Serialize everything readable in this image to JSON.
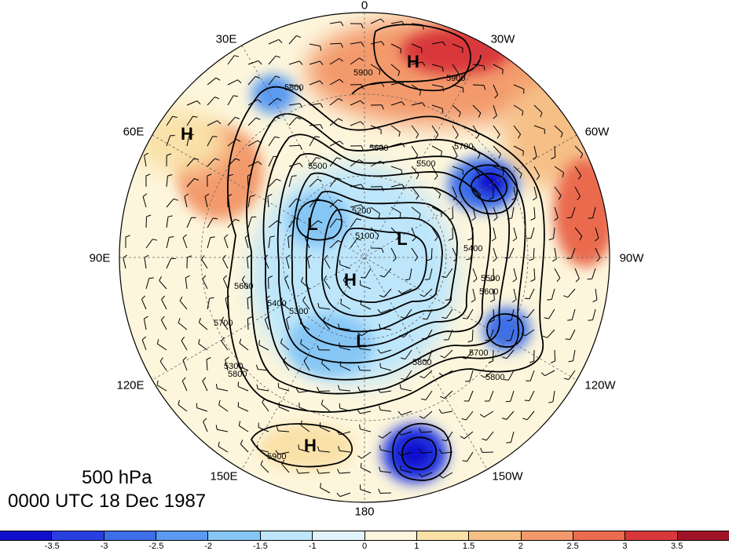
{
  "map": {
    "level_label": "500 hPa",
    "time_label": "0000 UTC 18 Dec 1987",
    "longitude_labels": [
      {
        "name": "lon-0",
        "text": "0"
      },
      {
        "name": "lon-30w",
        "text": "30W"
      },
      {
        "name": "lon-60w",
        "text": "60W"
      },
      {
        "name": "lon-90w",
        "text": "90W"
      },
      {
        "name": "lon-120w",
        "text": "120W"
      },
      {
        "name": "lon-150w",
        "text": "150W"
      },
      {
        "name": "lon-180",
        "text": "180"
      },
      {
        "name": "lon-150e",
        "text": "150E"
      },
      {
        "name": "lon-120e",
        "text": "120E"
      },
      {
        "name": "lon-90e",
        "text": "90E"
      },
      {
        "name": "lon-60e",
        "text": "60E"
      },
      {
        "name": "lon-30e",
        "text": "30E"
      }
    ],
    "pressure_centers": [
      {
        "type": "H",
        "label": "H"
      },
      {
        "type": "H",
        "label": "H"
      },
      {
        "type": "H",
        "label": "H"
      },
      {
        "type": "H",
        "label": "H"
      },
      {
        "type": "L",
        "label": "L"
      },
      {
        "type": "L",
        "label": "L"
      },
      {
        "type": "L",
        "label": "L"
      }
    ],
    "contour_labels": [
      "5900",
      "5900",
      "5800",
      "5700",
      "5600",
      "5500",
      "5500",
      "5400",
      "5300",
      "5200",
      "5100",
      "5600",
      "5700",
      "5800",
      "5800",
      "5700",
      "5800",
      "5600",
      "5500",
      "5400",
      "5300",
      "5900"
    ]
  },
  "colorbar": {
    "colors": [
      "#1010cc",
      "#2a3fe0",
      "#3d6fe8",
      "#5a9af0",
      "#86c6f5",
      "#bde6fb",
      "#e2f4fb",
      "#fdf6dc",
      "#f9e1a8",
      "#f6bf86",
      "#f39a6c",
      "#ea6b4e",
      "#d9383a",
      "#a01427"
    ],
    "ticks": [
      "-3.5",
      "-3",
      "-2.5",
      "-2",
      "-1.5",
      "-1",
      "0",
      "1",
      "1.5",
      "2",
      "2.5",
      "3",
      "3.5"
    ]
  }
}
